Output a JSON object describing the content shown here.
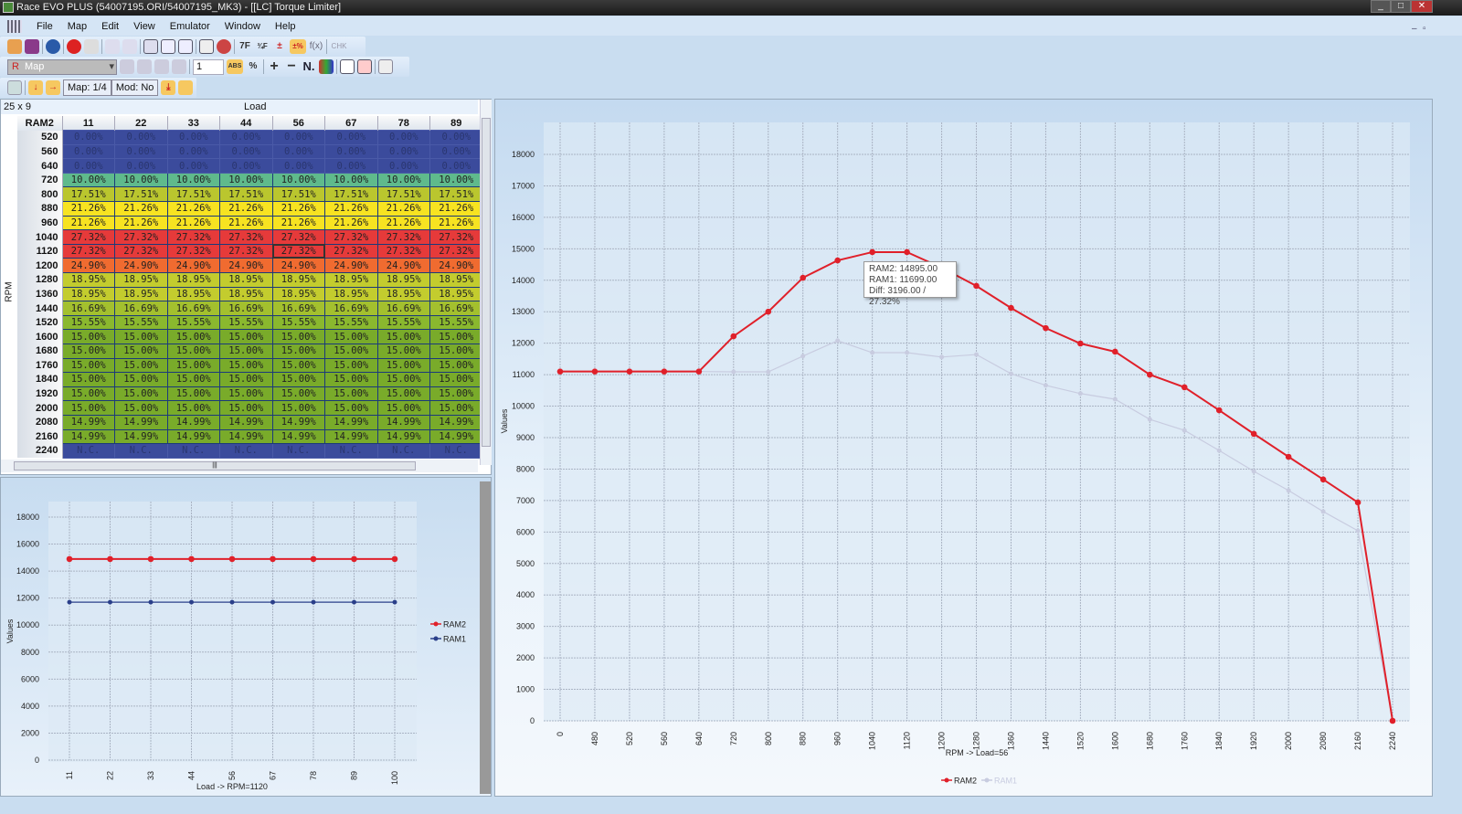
{
  "window": {
    "title": "Race EVO PLUS (54007195.ORI/54007195_MK3) - [[LC] Torque Limiter]",
    "min": "_",
    "max": "□",
    "close": "✕"
  },
  "menu": [
    "File",
    "Map",
    "Edit",
    "View",
    "Emulator",
    "Window",
    "Help"
  ],
  "toolbar1": {
    "icons": [
      "open-icon",
      "save-icon",
      "info-icon",
      "alert-icon",
      "wand-icon",
      "convert-icon",
      "checksum-icon",
      "window-icon",
      "document-icon",
      "compare-icon",
      "book-icon",
      "globe-icon"
    ],
    "labels": [
      "7F",
      "¾F",
      "±",
      "±%",
      "f(x)",
      "CHK"
    ]
  },
  "toolbar2": {
    "map_prefix": "R",
    "map_select": "Map",
    "value_input": "1",
    "labels": [
      "ABS",
      "+",
      "−",
      "N."
    ]
  },
  "toolbar3": {
    "map_status": "Map: 1/4",
    "mod_status": "Mod: No"
  },
  "table": {
    "size": "25 x 9",
    "col_axis": "Load",
    "row_axis": "RPM",
    "corner": "RAM2",
    "columns": [
      "11",
      "22",
      "33",
      "44",
      "56",
      "67",
      "78",
      "89"
    ],
    "rows": [
      {
        "rpm": "520",
        "v": "0.00%",
        "c": "#3b4b9c"
      },
      {
        "rpm": "560",
        "v": "0.00%",
        "c": "#3b4b9c"
      },
      {
        "rpm": "640",
        "v": "0.00%",
        "c": "#3b4b9c"
      },
      {
        "rpm": "720",
        "v": "10.00%",
        "c": "#5fba8c"
      },
      {
        "rpm": "800",
        "v": "17.51%",
        "c": "#bac62e"
      },
      {
        "rpm": "880",
        "v": "21.26%",
        "c": "#f7e321"
      },
      {
        "rpm": "960",
        "v": "21.26%",
        "c": "#f7e321"
      },
      {
        "rpm": "1040",
        "v": "27.32%",
        "c": "#e63a3a"
      },
      {
        "rpm": "1120",
        "v": "27.32%",
        "c": "#e63a3a"
      },
      {
        "rpm": "1200",
        "v": "24.90%",
        "c": "#f06b30"
      },
      {
        "rpm": "1280",
        "v": "18.95%",
        "c": "#c3cc2e"
      },
      {
        "rpm": "1360",
        "v": "18.95%",
        "c": "#c3cc2e"
      },
      {
        "rpm": "1440",
        "v": "16.69%",
        "c": "#a3c02e"
      },
      {
        "rpm": "1520",
        "v": "15.55%",
        "c": "#8ab82e"
      },
      {
        "rpm": "1600",
        "v": "15.00%",
        "c": "#79ab2a"
      },
      {
        "rpm": "1680",
        "v": "15.00%",
        "c": "#79ab2a"
      },
      {
        "rpm": "1760",
        "v": "15.00%",
        "c": "#79ab2a"
      },
      {
        "rpm": "1840",
        "v": "15.00%",
        "c": "#79ab2a"
      },
      {
        "rpm": "1920",
        "v": "15.00%",
        "c": "#79ab2a"
      },
      {
        "rpm": "2000",
        "v": "15.00%",
        "c": "#79ab2a"
      },
      {
        "rpm": "2080",
        "v": "14.99%",
        "c": "#79ab2a"
      },
      {
        "rpm": "2160",
        "v": "14.99%",
        "c": "#79ab2a"
      },
      {
        "rpm": "2240",
        "v": "N.C.",
        "c": "#3b4b9c"
      }
    ],
    "selected": {
      "rpm": "1120",
      "load": "56"
    }
  },
  "tooltip": {
    "line1": "RAM2: 14895.00",
    "line2": "RAM1: 11699.00",
    "line3": "Diff: 3196.00 / 27.32%"
  },
  "chart_data": [
    {
      "type": "line",
      "title": "",
      "xlabel": "RPM -> Load=56",
      "ylabel": "Values",
      "ylim": [
        0,
        18000
      ],
      "yticks": [
        0,
        1000,
        2000,
        3000,
        4000,
        5000,
        6000,
        7000,
        8000,
        9000,
        10000,
        11000,
        12000,
        13000,
        14000,
        15000,
        16000,
        17000,
        18000
      ],
      "x": [
        "0",
        "480",
        "520",
        "560",
        "640",
        "720",
        "800",
        "880",
        "960",
        "1040",
        "1120",
        "1200",
        "1280",
        "1360",
        "1440",
        "1520",
        "1600",
        "1680",
        "1760",
        "1840",
        "1920",
        "2000",
        "2080",
        "2160",
        "2240"
      ],
      "series": [
        {
          "name": "RAM2",
          "color": "#e0202a",
          "values": [
            11100,
            11100,
            11100,
            11100,
            11100,
            12220,
            13000,
            14080,
            14630,
            14895,
            14895,
            14400,
            13820,
            13120,
            12480,
            11990,
            11730,
            11000,
            10600,
            9870,
            9120,
            8390,
            7670,
            6940,
            0
          ]
        },
        {
          "name": "RAM1",
          "color": "#c8cce0",
          "values": [
            11100,
            11100,
            11100,
            11100,
            11100,
            11090,
            11090,
            11590,
            12080,
            11699,
            11699,
            11560,
            11640,
            11030,
            10660,
            10400,
            10220,
            9580,
            9230,
            8590,
            7930,
            7320,
            6650,
            6040,
            0
          ]
        }
      ],
      "legend": "bottom"
    },
    {
      "type": "line",
      "title": "",
      "xlabel": "Load -> RPM=1120",
      "ylabel": "Values",
      "ylim": [
        0,
        18000
      ],
      "yticks": [
        0,
        2000,
        4000,
        6000,
        8000,
        10000,
        12000,
        14000,
        16000,
        18000
      ],
      "x": [
        "11",
        "22",
        "33",
        "44",
        "56",
        "67",
        "78",
        "89",
        "100"
      ],
      "series": [
        {
          "name": "RAM2",
          "color": "#e0202a",
          "values": [
            14895,
            14895,
            14895,
            14895,
            14895,
            14895,
            14895,
            14895,
            14895
          ]
        },
        {
          "name": "RAM1",
          "color": "#2a3f8a",
          "values": [
            11699,
            11699,
            11699,
            11699,
            11699,
            11699,
            11699,
            11699,
            11699
          ]
        }
      ],
      "legend": "right"
    }
  ]
}
